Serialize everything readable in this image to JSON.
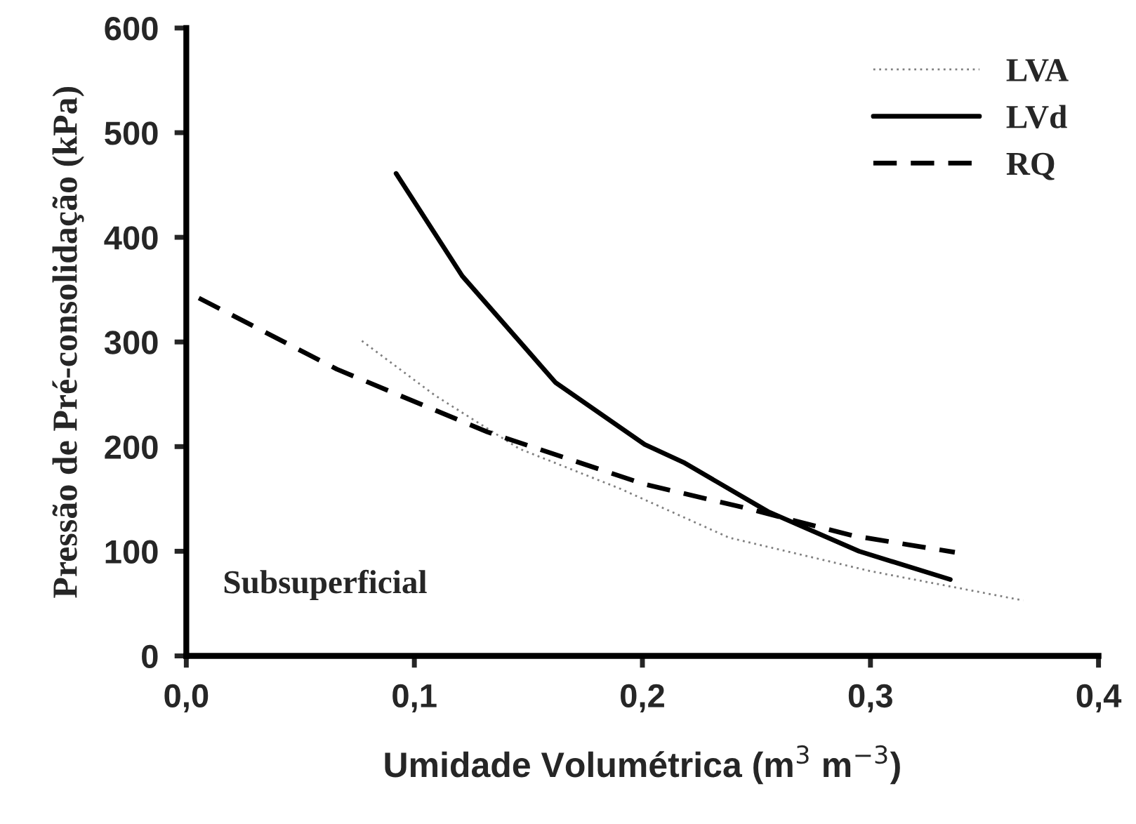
{
  "chart_data": {
    "type": "line",
    "xlabel": "Umidade Volumétrica (m$^{3}$ m$^{−3}$)",
    "ylabel": "Pressão de Pré-consolidação (kPa)",
    "annotations": [
      "Subsuperficial"
    ],
    "xlim": [
      0,
      0.4
    ],
    "xticks": [
      {
        "value": 0,
        "label": "0,0"
      },
      {
        "value": 0.1,
        "label": "0,1"
      },
      {
        "value": 0.2,
        "label": "0,2"
      },
      {
        "value": 0.3,
        "label": "0,3"
      },
      {
        "value": 0.4,
        "label": "0,4"
      }
    ],
    "ylim": [
      0,
      600
    ],
    "yticks": [
      0,
      100,
      200,
      300,
      400,
      500,
      600
    ],
    "legend": "top right",
    "grid": false,
    "series": [
      {
        "name": "LVA",
        "color": "#808080",
        "line_style": "dotted",
        "x": [
          0.077,
          0.109,
          0.146,
          0.19,
          0.238,
          0.3,
          0.367
        ],
        "values": [
          301,
          249,
          198,
          160,
          113,
          81,
          53
        ]
      },
      {
        "name": "LVd",
        "color": "#000000",
        "line_style": "solid",
        "x": [
          0.092,
          0.121,
          0.162,
          0.201,
          0.218,
          0.255,
          0.295,
          0.335
        ],
        "values": [
          461,
          363,
          261,
          202,
          185,
          138,
          100,
          73
        ]
      },
      {
        "name": "RQ",
        "color": "#000000",
        "line_style": "dashed",
        "x": [
          0.0055,
          0.066,
          0.132,
          0.201,
          0.244,
          0.292,
          0.337
        ],
        "values": [
          342,
          274,
          214,
          164,
          142,
          115,
          99
        ]
      }
    ]
  }
}
